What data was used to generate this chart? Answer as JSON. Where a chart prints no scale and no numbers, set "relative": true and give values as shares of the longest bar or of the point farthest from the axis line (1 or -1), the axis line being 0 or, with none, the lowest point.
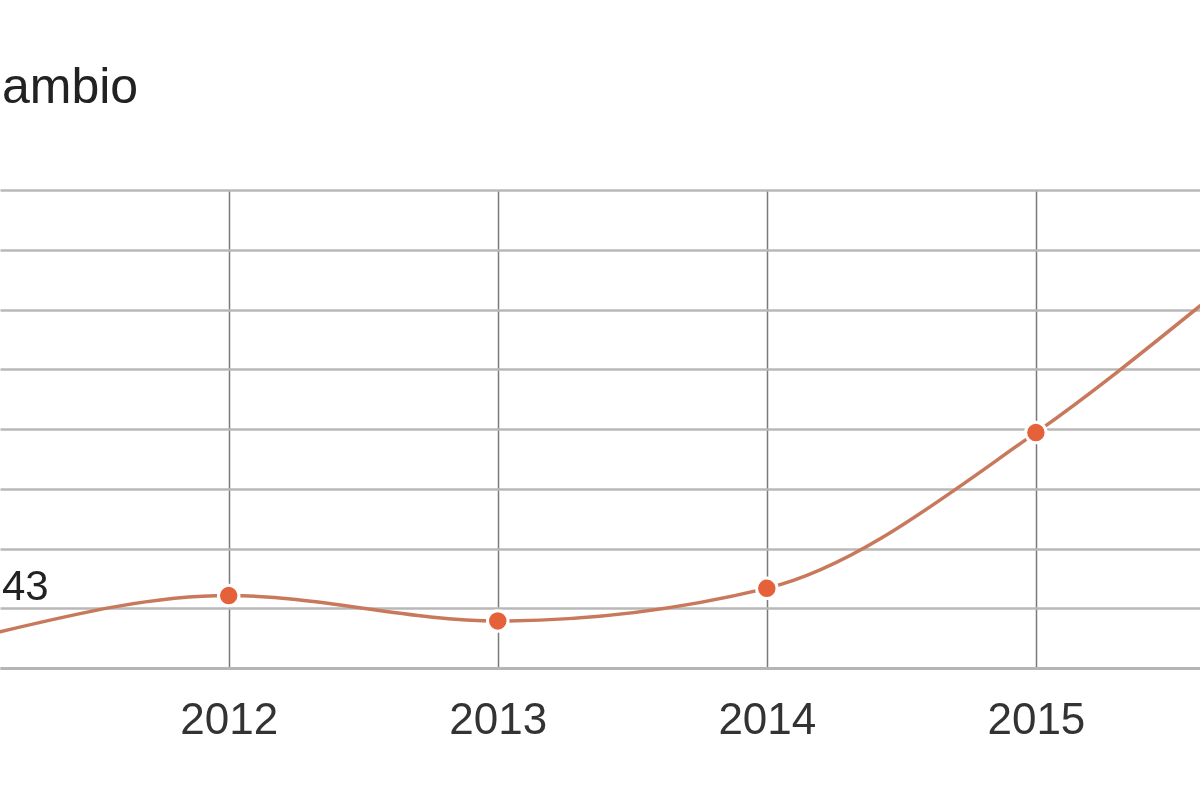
{
  "chart_data": {
    "type": "line",
    "title": "ambio",
    "relative": true,
    "xlim": [
      2011.15,
      2015.61
    ],
    "xticks": [
      2012,
      2013,
      2014,
      2015
    ],
    "grid": true,
    "annotations": [
      "43"
    ],
    "series": [
      {
        "type": "line",
        "color": "#c8795b",
        "marker": "none",
        "line_style": "solid",
        "x": [
          2011.15,
          2012,
          2013,
          2014,
          2015,
          2015.61
        ],
        "values": [
          0.1,
          0.2,
          0.13,
          0.22,
          0.65,
          1
        ]
      },
      {
        "type": "scatter",
        "color": "#e5613a",
        "marker": "circle",
        "x": [
          2012,
          2013,
          2014,
          2015
        ],
        "values": [
          0.2,
          0.13,
          0.22,
          0.65
        ]
      }
    ]
  }
}
